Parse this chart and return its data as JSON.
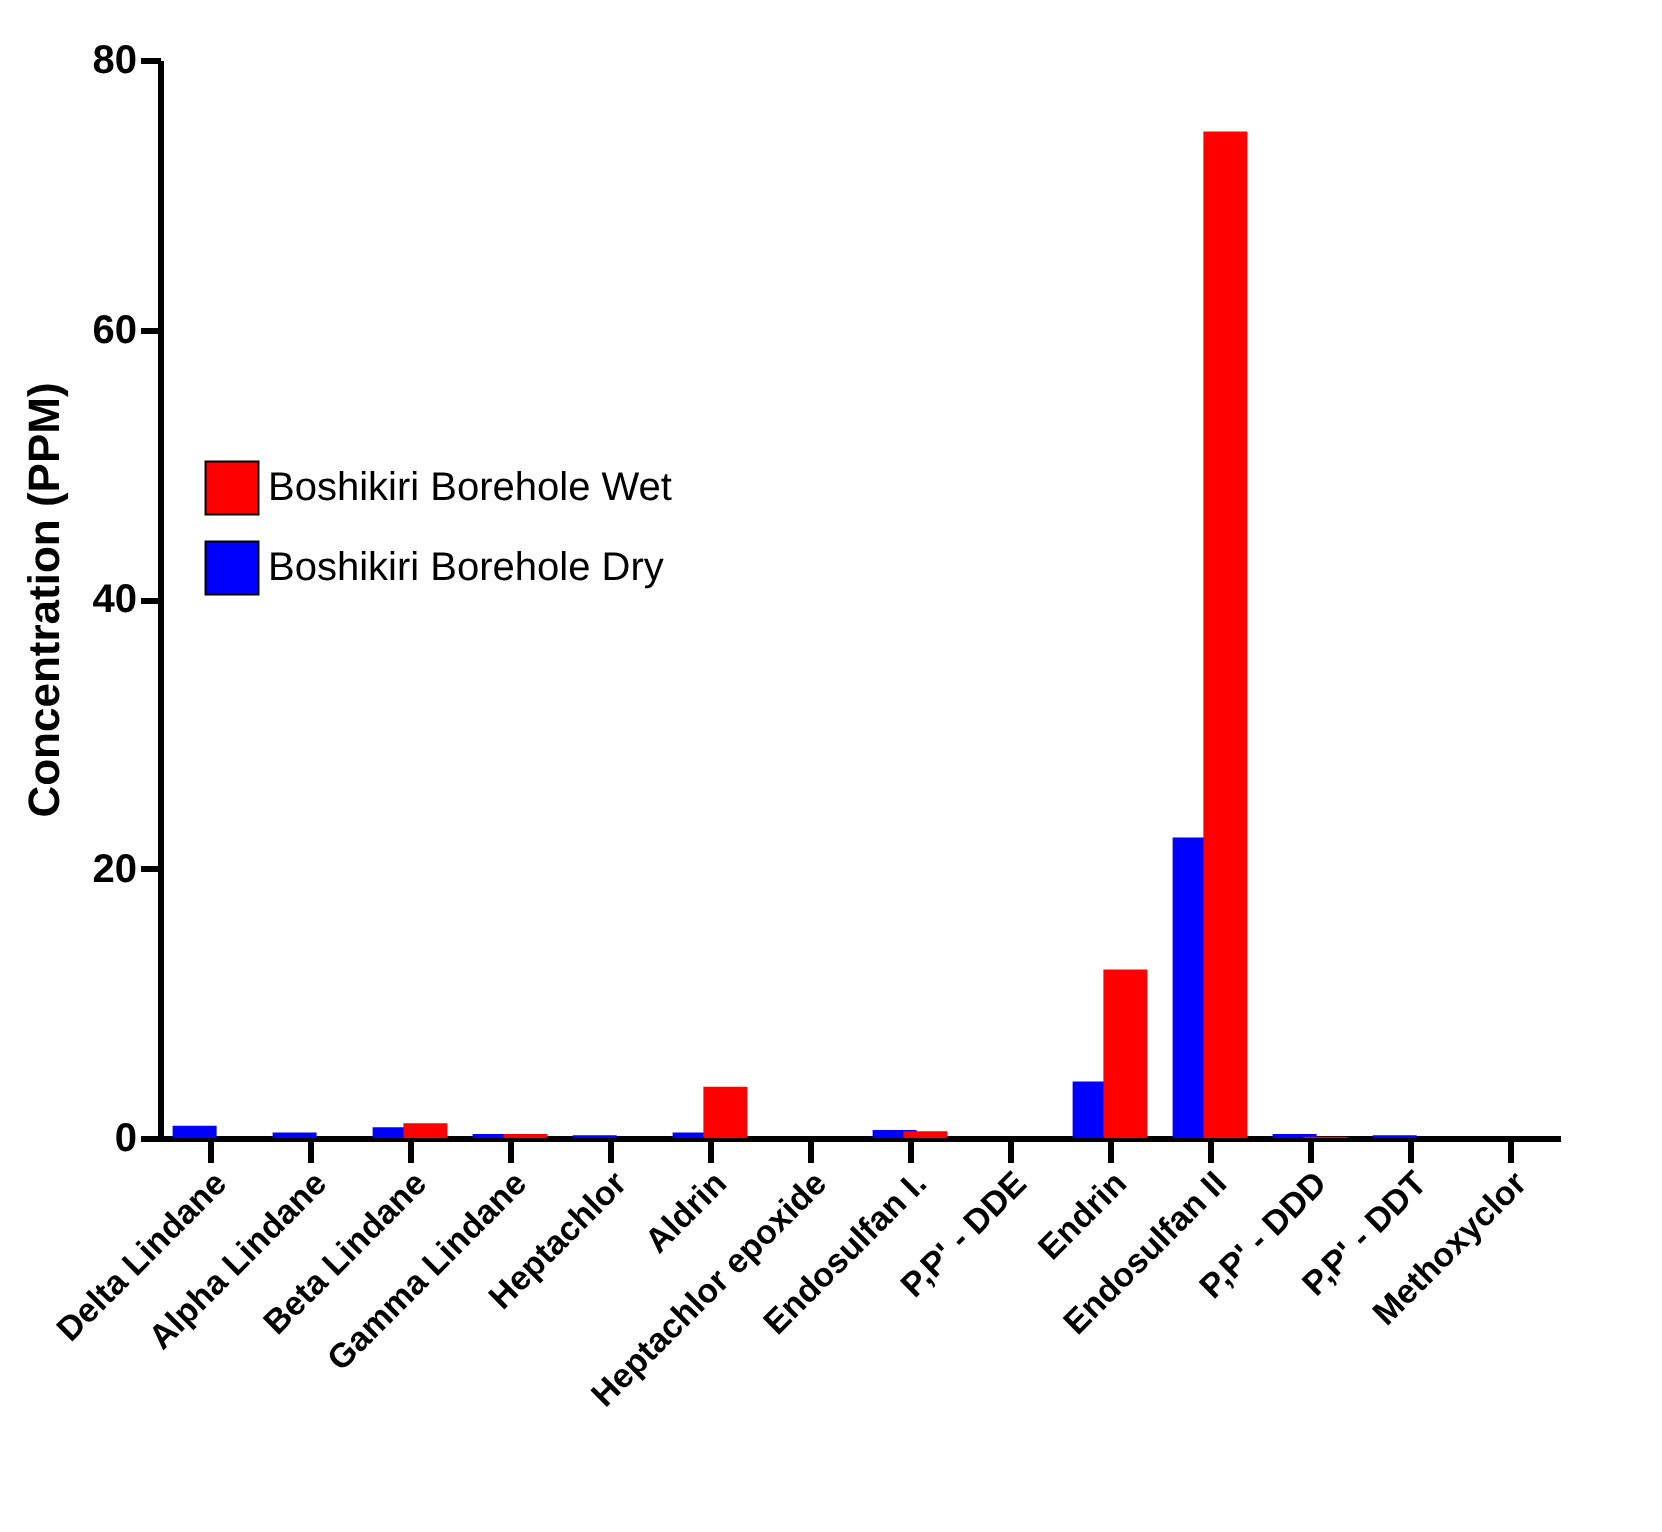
{
  "chart_data": {
    "type": "bar",
    "ylabel": "Concentration (PPM)",
    "categories": [
      "Delta Lindane",
      "Alpha Lindane",
      "Beta Lindane",
      "Gamma Lindane",
      "Heptachlor",
      "Aldrin",
      "Heptachlor epoxide",
      "Endosulfan I.",
      "P,P' - DDE",
      "Endrin",
      "Endosulfan II",
      "P,P' - DDD",
      "P,P' - DDT",
      "Methoxyclor"
    ],
    "series": [
      {
        "name": "Boshikiri Borehole Dry",
        "color": "#0000ff",
        "values": [
          0.9,
          0.4,
          0.8,
          0.3,
          0.2,
          0.4,
          0,
          0.6,
          0,
          4.2,
          22.3,
          0.3,
          0.2,
          0
        ]
      },
      {
        "name": "Boshikiri Borehole Wet",
        "color": "#ff0000",
        "values": [
          0,
          0,
          1.1,
          0.3,
          0,
          3.8,
          0,
          0.5,
          0,
          12.5,
          74.7,
          0.1,
          0,
          0
        ]
      }
    ],
    "ylim": [
      0,
      80
    ],
    "yticks": [
      0,
      20,
      40,
      60,
      80
    ],
    "grid": false,
    "legend": "left"
  }
}
